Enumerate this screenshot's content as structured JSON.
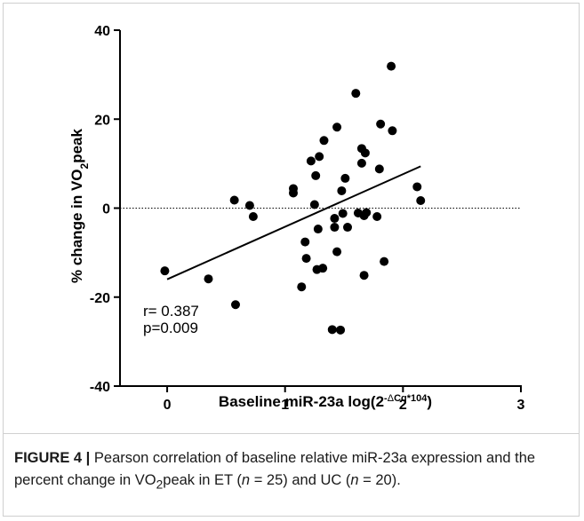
{
  "chart_data": {
    "type": "scatter",
    "xlabel": {
      "text": "Baseline miR-23a log(2",
      "superscript_prefix": "-",
      "superscript_delta": "Δ",
      "superscript_cq": "Cq",
      "superscript_times": "*10",
      "superscript_pow": "4",
      "closing": ")"
    },
    "ylabel": {
      "text": "% change in VO",
      "subscript": "2",
      "suffix": "peak"
    },
    "xlim": [
      -0.4,
      3
    ],
    "ylim": [
      -40,
      40
    ],
    "x_ticks": [
      0,
      1,
      2,
      3
    ],
    "x_tick_labels": [
      "0",
      "1",
      "2",
      "3"
    ],
    "y_ticks": [
      -40,
      -20,
      0,
      20,
      40
    ],
    "y_tick_labels": [
      "-40",
      "-20",
      "0",
      "20",
      "40"
    ],
    "reference_line_y": 0,
    "regression": {
      "x": [
        0,
        2.15
      ],
      "y": [
        -16,
        9.4
      ]
    },
    "stats": {
      "r": "r= 0.387",
      "p": "p=0.009"
    },
    "points": [
      {
        "x": -0.02,
        "y": -14.1
      },
      {
        "x": 0.35,
        "y": -15.9
      },
      {
        "x": 0.57,
        "y": 1.8
      },
      {
        "x": 0.58,
        "y": -21.7
      },
      {
        "x": 0.7,
        "y": 0.6
      },
      {
        "x": 0.73,
        "y": -1.9
      },
      {
        "x": 1.07,
        "y": 4.4
      },
      {
        "x": 1.07,
        "y": 3.4
      },
      {
        "x": 1.14,
        "y": -17.7
      },
      {
        "x": 1.17,
        "y": -7.6
      },
      {
        "x": 1.18,
        "y": -11.3
      },
      {
        "x": 1.22,
        "y": 10.6
      },
      {
        "x": 1.25,
        "y": 0.8
      },
      {
        "x": 1.26,
        "y": 7.3
      },
      {
        "x": 1.27,
        "y": -13.8
      },
      {
        "x": 1.28,
        "y": -4.7
      },
      {
        "x": 1.29,
        "y": 11.6
      },
      {
        "x": 1.32,
        "y": -13.5
      },
      {
        "x": 1.33,
        "y": 15.2
      },
      {
        "x": 1.4,
        "y": -27.3
      },
      {
        "x": 1.42,
        "y": -4.3
      },
      {
        "x": 1.42,
        "y": -2.3
      },
      {
        "x": 1.44,
        "y": 18.2
      },
      {
        "x": 1.44,
        "y": -9.8
      },
      {
        "x": 1.47,
        "y": -27.4
      },
      {
        "x": 1.48,
        "y": 3.9
      },
      {
        "x": 1.49,
        "y": -1.2
      },
      {
        "x": 1.51,
        "y": 6.7
      },
      {
        "x": 1.53,
        "y": -4.3
      },
      {
        "x": 1.6,
        "y": 25.8
      },
      {
        "x": 1.62,
        "y": -1.1
      },
      {
        "x": 1.65,
        "y": 13.4
      },
      {
        "x": 1.65,
        "y": 10.1
      },
      {
        "x": 1.67,
        "y": -1.7
      },
      {
        "x": 1.67,
        "y": -15.1
      },
      {
        "x": 1.68,
        "y": 12.4
      },
      {
        "x": 1.69,
        "y": -1.0
      },
      {
        "x": 1.78,
        "y": -1.9
      },
      {
        "x": 1.8,
        "y": 8.8
      },
      {
        "x": 1.81,
        "y": 18.9
      },
      {
        "x": 1.84,
        "y": -12.0
      },
      {
        "x": 1.9,
        "y": 31.9
      },
      {
        "x": 1.91,
        "y": 17.4
      },
      {
        "x": 2.12,
        "y": 4.8
      },
      {
        "x": 2.15,
        "y": 1.7
      }
    ]
  },
  "caption": {
    "figure_label": "FIGURE 4 |",
    "text_1": " Pearson correlation of baseline relative miR-23a expression and the percent change in VO",
    "sub_2": "2",
    "text_2": "peak in ET (",
    "n_1": "n",
    "text_3": " = 25) and UC (",
    "n_2": "n",
    "text_4": " = 20)."
  }
}
